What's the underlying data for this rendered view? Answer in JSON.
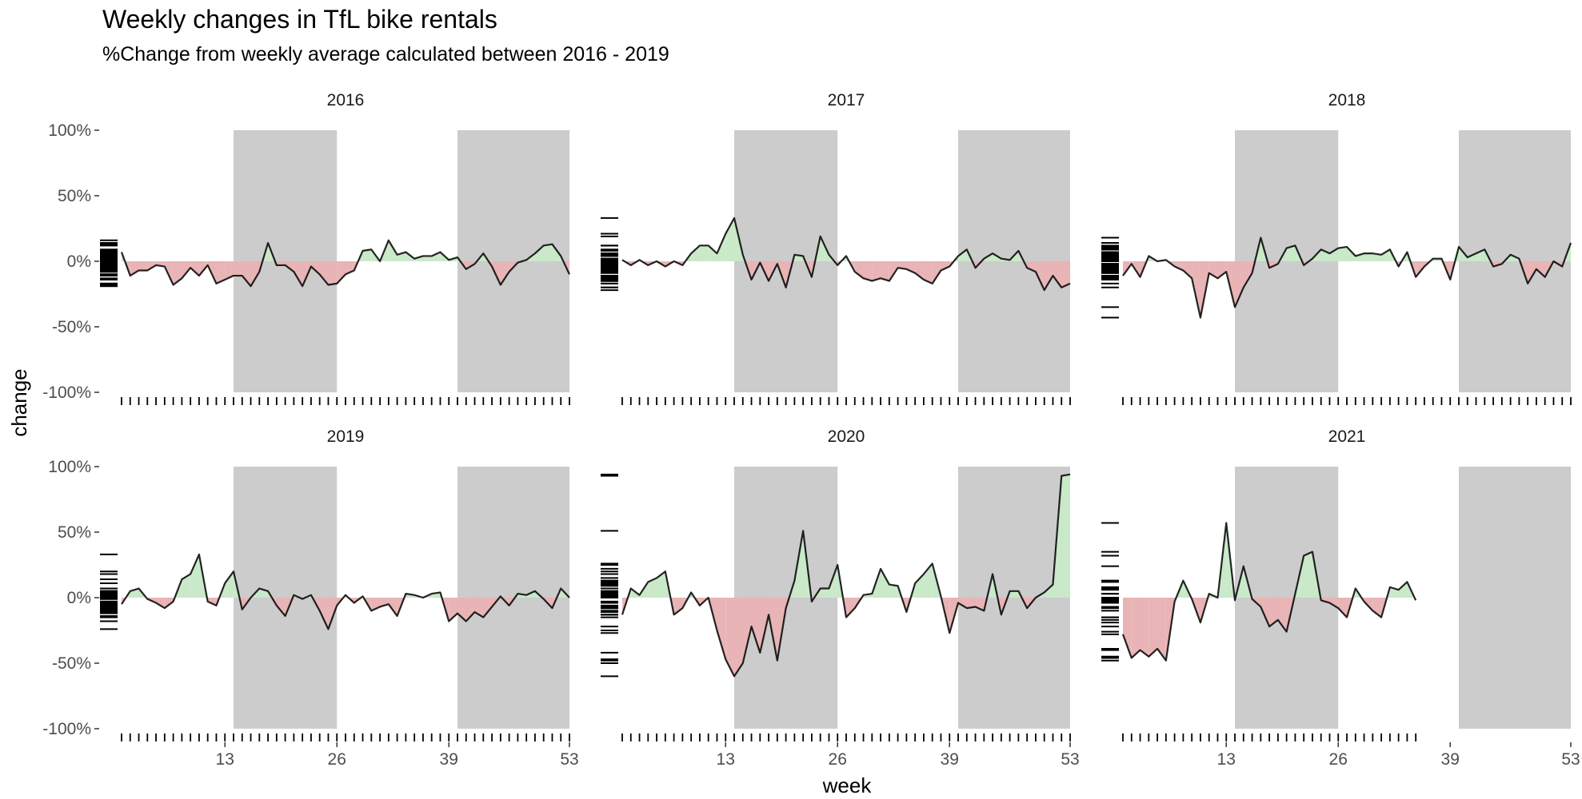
{
  "chart_data": {
    "type": "area",
    "title": "Weekly changes in TfL bike rentals",
    "subtitle": "%Change from weekly average calculated between 2016 - 2019",
    "xlabel": "week",
    "ylabel": "change",
    "xlim": [
      1,
      53
    ],
    "ylim": [
      -100,
      100
    ],
    "y_ticks": [
      "100%",
      "50%",
      "0%",
      "-50%",
      "-100%"
    ],
    "y_tick_values": [
      100,
      50,
      0,
      -50,
      -100
    ],
    "x_ticks": [
      13,
      26,
      39,
      53
    ],
    "shaded_week_ranges": [
      [
        14,
        26
      ],
      [
        40,
        53
      ]
    ],
    "colors": {
      "positive_fill": "#c9e9c9",
      "negative_fill": "#e8b4b6",
      "shade": "#cccccc",
      "line": "#000000",
      "rug": "#000000"
    },
    "facets": [
      {
        "label": "2016",
        "values": [
          7,
          -11,
          -7,
          -7,
          -3,
          -4,
          -18,
          -13,
          -5,
          -11,
          -3,
          -17,
          -14,
          -11,
          -11,
          -19,
          -8,
          14,
          -3,
          -3,
          -8,
          -19,
          -4,
          -10,
          -18,
          -17,
          -10,
          -7,
          8,
          9,
          0,
          16,
          5,
          7,
          2,
          4,
          4,
          7,
          1,
          3,
          -6,
          -2,
          6,
          -4,
          -18,
          -8,
          -1,
          1,
          6,
          12,
          13,
          4,
          -10
        ]
      },
      {
        "label": "2017",
        "values": [
          1,
          -3,
          1,
          -3,
          0,
          -4,
          0,
          -3,
          6,
          12,
          12,
          6,
          21,
          33,
          5,
          -14,
          -1,
          -15,
          -2,
          -20,
          5,
          4,
          -12,
          19,
          5,
          -3,
          4,
          -8,
          -13,
          -15,
          -13,
          -15,
          -5,
          -6,
          -9,
          -14,
          -17,
          -7,
          -4,
          4,
          9,
          -5,
          2,
          6,
          2,
          1,
          8,
          -5,
          -8,
          -22,
          -11,
          -20,
          -17
        ]
      },
      {
        "label": "2018",
        "values": [
          -11,
          -2,
          -12,
          4,
          0,
          1,
          -4,
          -7,
          -13,
          -43,
          -9,
          -13,
          -8,
          -35,
          -20,
          -9,
          18,
          -5,
          -2,
          10,
          12,
          -3,
          2,
          9,
          6,
          10,
          11,
          4,
          6,
          6,
          5,
          9,
          -4,
          7,
          -12,
          -4,
          2,
          2,
          -14,
          11,
          3,
          6,
          9,
          -4,
          -2,
          5,
          2,
          -17,
          -6,
          -12,
          0,
          -4,
          14
        ]
      },
      {
        "label": "2019",
        "values": [
          -5,
          5,
          7,
          -1,
          -4,
          -8,
          -3,
          14,
          18,
          33,
          -3,
          -6,
          11,
          20,
          -9,
          0,
          7,
          5,
          -6,
          -14,
          2,
          -1,
          2,
          -10,
          -24,
          -6,
          2,
          -4,
          1,
          -10,
          -7,
          -5,
          -14,
          3,
          2,
          0,
          3,
          4,
          -18,
          -12,
          -18,
          -11,
          -15,
          -7,
          1,
          -6,
          3,
          2,
          5,
          -1,
          -8,
          7,
          0
        ]
      },
      {
        "label": "2020",
        "values": [
          -13,
          7,
          2,
          12,
          15,
          20,
          -13,
          -8,
          4,
          -6,
          0,
          -25,
          -47,
          -60,
          -50,
          -22,
          -42,
          -13,
          -48,
          -8,
          13,
          51,
          -3,
          7,
          7,
          25,
          -15,
          -8,
          2,
          3,
          22,
          10,
          9,
          -11,
          11,
          18,
          26,
          1,
          -27,
          -4,
          -8,
          -7,
          -10,
          18,
          -13,
          5,
          5,
          -8,
          0,
          4,
          10,
          93,
          94
        ]
      },
      {
        "label": "2021",
        "values": [
          -28,
          -46,
          -40,
          -45,
          -39,
          -48,
          -3,
          13,
          -1,
          -19,
          3,
          0,
          57,
          -2,
          24,
          -1,
          -7,
          -22,
          -17,
          -26,
          3,
          32,
          35,
          -2,
          -4,
          -8,
          -15,
          7,
          -3,
          -10,
          -15,
          8,
          6,
          12,
          -2
        ]
      }
    ]
  }
}
